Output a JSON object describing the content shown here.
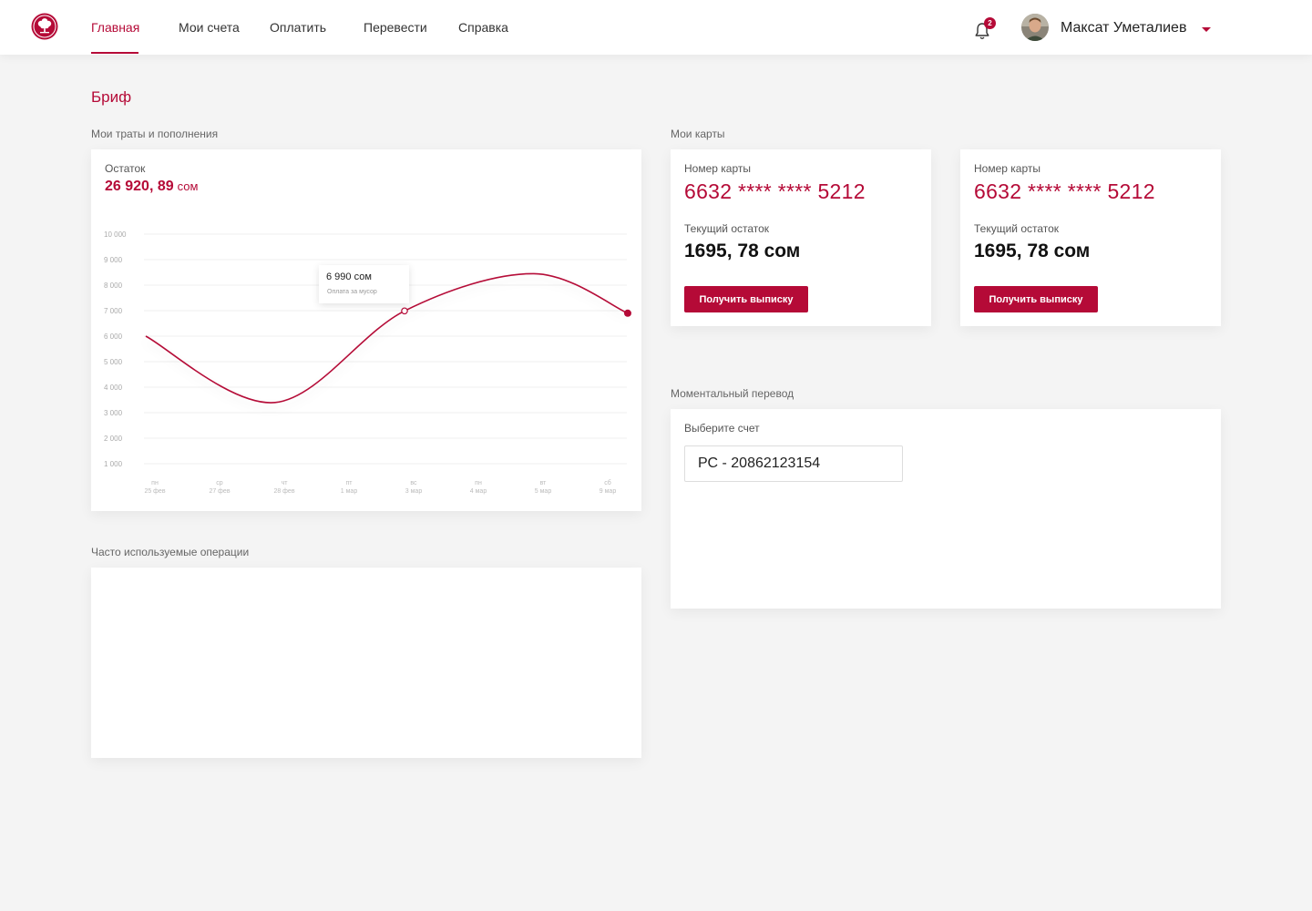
{
  "header": {
    "nav": [
      "Главная",
      "Мои счета",
      "Оплатить",
      "Перевести",
      "Справка"
    ],
    "notifications_count": "2",
    "user_name": "Максат Уметалиев"
  },
  "page_title": "Бриф",
  "spending": {
    "section_label": "Мои траты и пополнения",
    "balance_label": "Остаток",
    "balance_value": "26 920, 89",
    "balance_unit": "сом",
    "tooltip_amount": "6 990 сом",
    "tooltip_desc": "Оплата за мусор"
  },
  "chart_data": {
    "type": "line",
    "y_ticks": [
      "10 000",
      "9 000",
      "8 000",
      "7 000",
      "6 000",
      "5 000",
      "4 000",
      "3 000",
      "2 000",
      "1 000"
    ],
    "x_categories": [
      {
        "day": "пн",
        "date": "25 фев"
      },
      {
        "day": "ср",
        "date": "27 фев"
      },
      {
        "day": "чт",
        "date": "28 фев"
      },
      {
        "day": "пт",
        "date": "1 мар"
      },
      {
        "day": "вс",
        "date": "3 мар"
      },
      {
        "day": "пн",
        "date": "4 мар"
      },
      {
        "day": "вт",
        "date": "5 мар"
      },
      {
        "day": "сб",
        "date": "9 мар"
      }
    ],
    "ylim": [
      1000,
      10000
    ],
    "grid": true,
    "series": [
      {
        "points": [
          [
            0,
            6000
          ],
          [
            2,
            3400
          ],
          [
            4,
            6990
          ],
          [
            6,
            8450
          ],
          [
            7.45,
            6900
          ]
        ],
        "highlight_index": 2
      }
    ],
    "color": "#b50a37"
  },
  "cards": {
    "section_label": "Мои карты",
    "items": [
      {
        "number_label": "Номер карты",
        "number": "6632 **** **** 5212",
        "balance_label": "Текущий остаток",
        "balance": "1695, 78 сом",
        "button": "Получить выписку"
      },
      {
        "number_label": "Номер карты",
        "number": "6632 **** **** 5212",
        "balance_label": "Текущий остаток",
        "balance": "1695, 78 сом",
        "button": "Получить выписку"
      }
    ]
  },
  "transfer": {
    "section_label": "Моментальный перевод",
    "select_label": "Выберите счет",
    "account_value": "РС - 20862123154"
  },
  "frequent": {
    "section_label": "Часто используемые операции"
  }
}
